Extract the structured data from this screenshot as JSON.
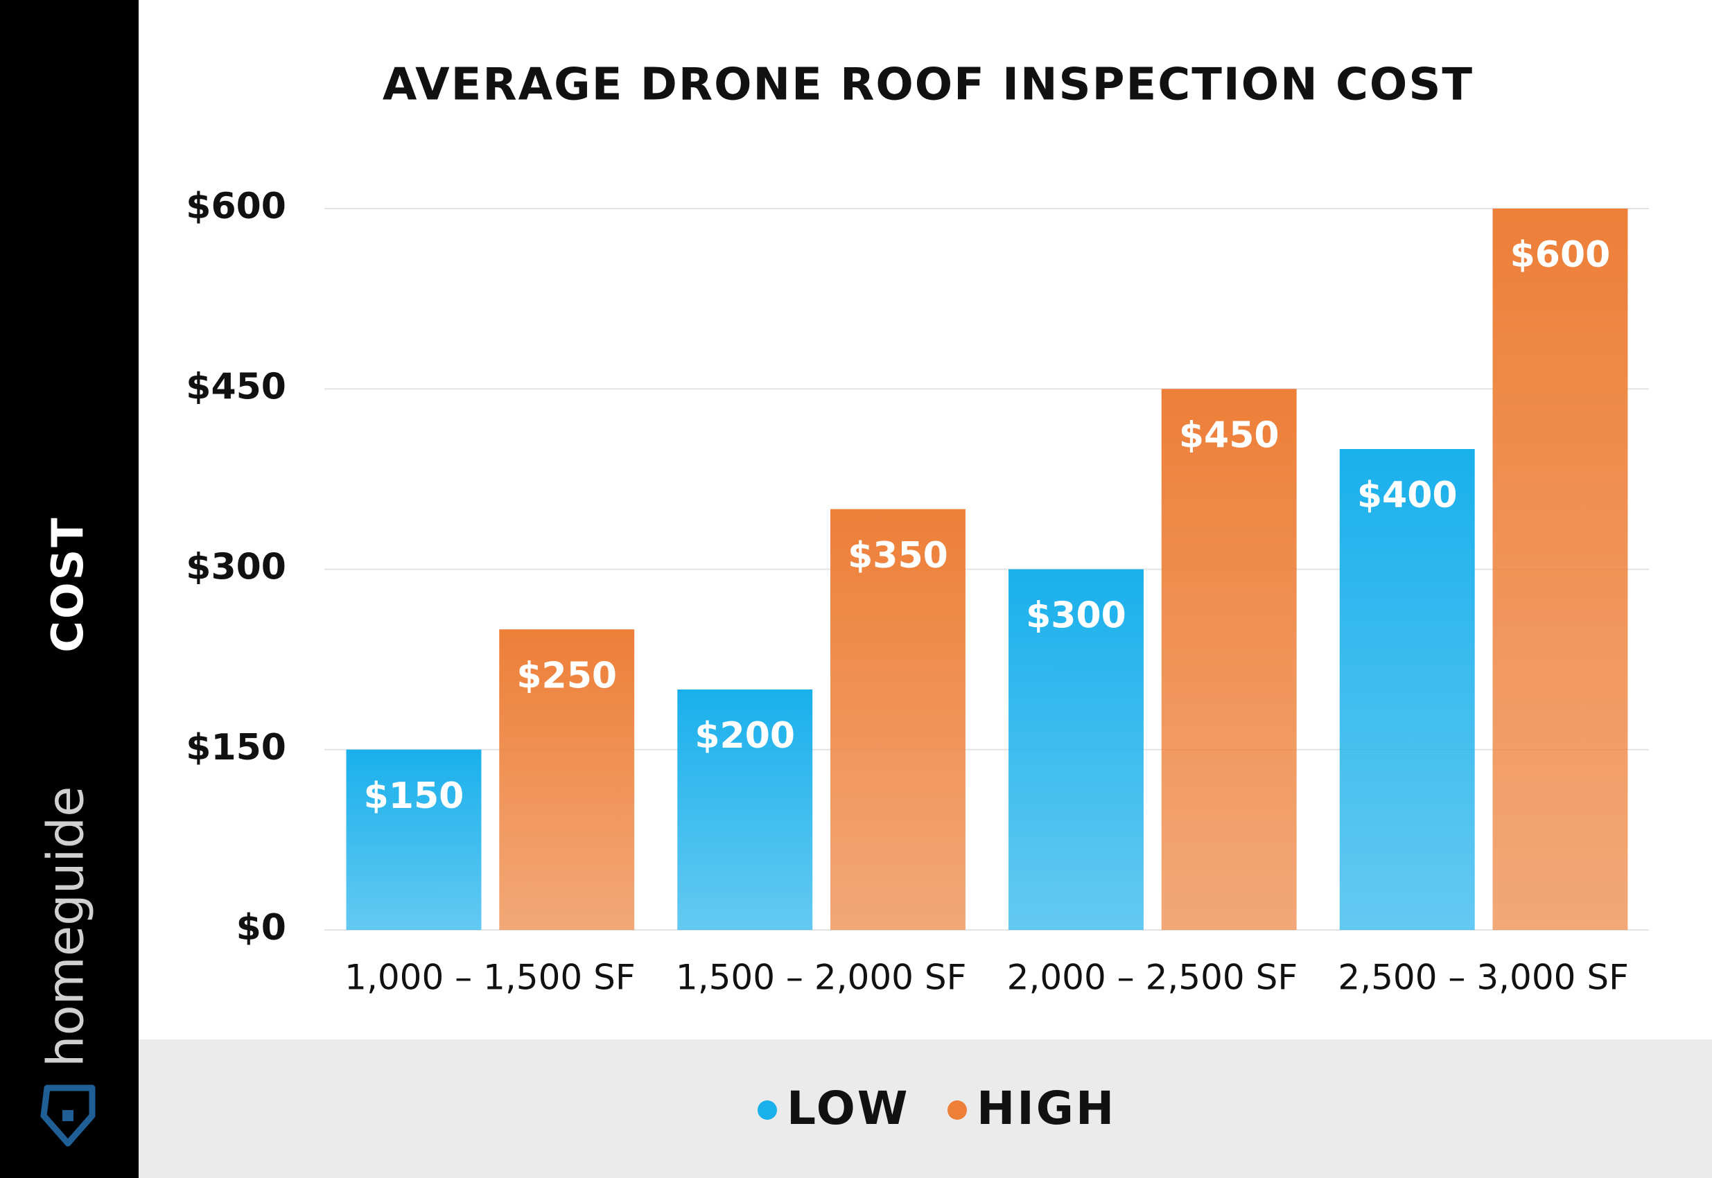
{
  "brand": "homeguide",
  "chart_data": {
    "type": "bar",
    "title": "AVERAGE DRONE ROOF INSPECTION COST",
    "y_label": "COST",
    "categories": [
      "1,000 – 1,500 SF",
      "1,500 – 2,000 SF",
      "2,000 – 2,500 SF",
      "2,500 – 3,000 SF"
    ],
    "series": [
      {
        "name": "LOW",
        "color": "#1ab0ec",
        "values": [
          150,
          200,
          300,
          400
        ],
        "value_labels": [
          "$150",
          "$200",
          "$300",
          "$400"
        ]
      },
      {
        "name": "HIGH",
        "color": "#ed7f38",
        "values": [
          250,
          350,
          450,
          600
        ],
        "value_labels": [
          "$250",
          "$350",
          "$450",
          "$600"
        ]
      }
    ],
    "ylim": [
      0,
      600
    ],
    "yticks": [
      {
        "value": 0,
        "label": "$0"
      },
      {
        "value": 150,
        "label": "$150"
      },
      {
        "value": 300,
        "label": "$300"
      },
      {
        "value": 450,
        "label": "$450"
      },
      {
        "value": 600,
        "label": "$600"
      }
    ],
    "grid": true
  }
}
